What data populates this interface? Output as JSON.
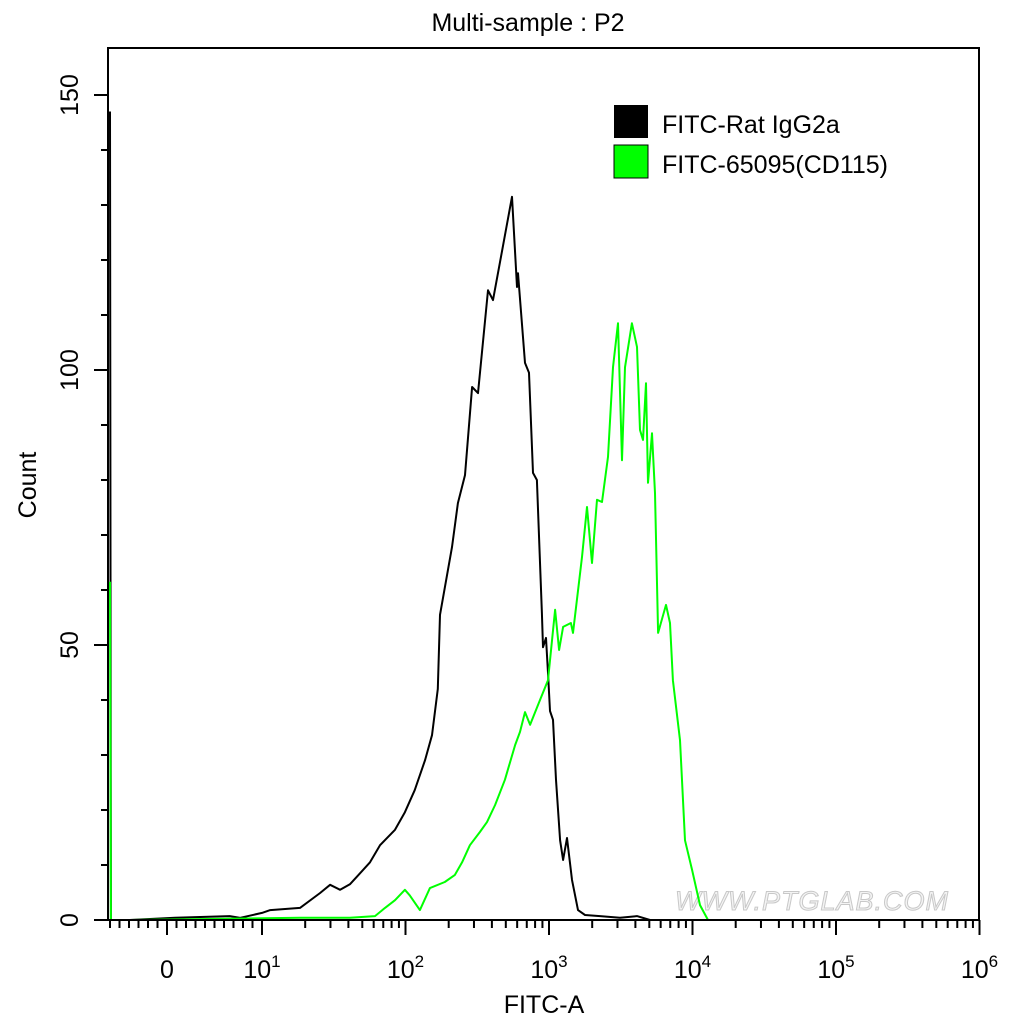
{
  "chart_data": {
    "type": "line",
    "title": "Multi-sample : P2",
    "xlabel": "FITC-A",
    "ylabel": "Count",
    "x_scale": "biexponential",
    "xlim": [
      -6.3,
      1000000
    ],
    "ylim": [
      0,
      158
    ],
    "x_tick_labels": [
      {
        "value": 0,
        "base": "0",
        "exp": ""
      },
      {
        "value": 10,
        "base": "10",
        "exp": "1"
      },
      {
        "value": 100,
        "base": "10",
        "exp": "2"
      },
      {
        "value": 1000,
        "base": "10",
        "exp": "3"
      },
      {
        "value": 10000,
        "base": "10",
        "exp": "4"
      },
      {
        "value": 100000,
        "base": "10",
        "exp": "5"
      },
      {
        "value": 1000000,
        "base": "10",
        "exp": "6"
      }
    ],
    "y_ticks": [
      0,
      50,
      100,
      150
    ],
    "y_tick_labels": [
      "0",
      "50",
      "100",
      "150"
    ],
    "grid": false,
    "legend_position": "top-right",
    "watermark": "WWW.PTGLAB.COM",
    "series": [
      {
        "name": "FITC-Rat IgG2a",
        "color": "#000000",
        "points": [
          [
            -6.0,
            147
          ],
          [
            -5.9,
            0
          ],
          [
            -3.9,
            0
          ],
          [
            0.84,
            0.4
          ],
          [
            6.6,
            0.7
          ],
          [
            7.7,
            0.4
          ],
          [
            10,
            1.3
          ],
          [
            11.4,
            1.8
          ],
          [
            18.4,
            2.2
          ],
          [
            25.4,
            4.9
          ],
          [
            29.8,
            6.4
          ],
          [
            35,
            5.5
          ],
          [
            41,
            6.5
          ],
          [
            48.2,
            8.5
          ],
          [
            56.6,
            10.5
          ],
          [
            66.4,
            13.6
          ],
          [
            84.5,
            16.4
          ],
          [
            99,
            19.6
          ],
          [
            116,
            23.6
          ],
          [
            137,
            29.1
          ],
          [
            153,
            33.6
          ],
          [
            168,
            42
          ],
          [
            174,
            55.5
          ],
          [
            211,
            67.8
          ],
          [
            232,
            75.8
          ],
          [
            260,
            80.9
          ],
          [
            291,
            96.9
          ],
          [
            320,
            95.8
          ],
          [
            376,
            114.5
          ],
          [
            407,
            112.7
          ],
          [
            470,
            121.5
          ],
          [
            552,
            131.5
          ],
          [
            598,
            115.1
          ],
          [
            608,
            117.6
          ],
          [
            680,
            101.3
          ],
          [
            726,
            99.5
          ],
          [
            774,
            81.3
          ],
          [
            824,
            80
          ],
          [
            893,
            55.8
          ],
          [
            908,
            49.6
          ],
          [
            953,
            51.3
          ],
          [
            984,
            44.9
          ],
          [
            1016,
            38
          ],
          [
            1067,
            36.4
          ],
          [
            1119,
            25.5
          ],
          [
            1194,
            14.5
          ],
          [
            1253,
            10.9
          ],
          [
            1335,
            14.9
          ],
          [
            1446,
            7.3
          ],
          [
            1592,
            1.8
          ],
          [
            1782,
            0.9
          ],
          [
            2266,
            0.7
          ],
          [
            3126,
            0.4
          ],
          [
            4105,
            0.7
          ],
          [
            5058,
            0
          ]
        ]
      },
      {
        "name": "FITC-65095(CD115)",
        "color": "#00ff00",
        "points": [
          [
            -6.0,
            61.5
          ],
          [
            -5.9,
            0
          ],
          [
            -3.9,
            0
          ],
          [
            18.4,
            0.4
          ],
          [
            41,
            0.4
          ],
          [
            61.3,
            0.7
          ],
          [
            72,
            2.2
          ],
          [
            84.5,
            3.6
          ],
          [
            99,
            5.5
          ],
          [
            107,
            4.5
          ],
          [
            126,
            1.8
          ],
          [
            148,
            5.8
          ],
          [
            188,
            6.9
          ],
          [
            221,
            8.2
          ],
          [
            248,
            10.5
          ],
          [
            281,
            13.6
          ],
          [
            330,
            16
          ],
          [
            370,
            17.8
          ],
          [
            421,
            20.9
          ],
          [
            493,
            25.5
          ],
          [
            580,
            31.8
          ],
          [
            628,
            34.2
          ],
          [
            680,
            37.8
          ],
          [
            738,
            35.5
          ],
          [
            865,
            40
          ],
          [
            984,
            43.6
          ],
          [
            1102,
            56.4
          ],
          [
            1175,
            49.1
          ],
          [
            1253,
            53.3
          ],
          [
            1422,
            54
          ],
          [
            1469,
            52.2
          ],
          [
            1698,
            66
          ],
          [
            1841,
            75.1
          ],
          [
            1995,
            64.9
          ],
          [
            2159,
            76.4
          ],
          [
            2339,
            76
          ],
          [
            2576,
            84.2
          ],
          [
            2792,
            100.5
          ],
          [
            3025,
            108.5
          ],
          [
            3228,
            83.6
          ],
          [
            3388,
            100.5
          ],
          [
            3784,
            108.5
          ],
          [
            4105,
            104.2
          ],
          [
            4305,
            89.1
          ],
          [
            4519,
            87.3
          ],
          [
            4743,
            97.6
          ],
          [
            4898,
            79.5
          ],
          [
            5224,
            88.5
          ],
          [
            5483,
            77.6
          ],
          [
            5754,
            52.2
          ],
          [
            6538,
            57.3
          ],
          [
            6966,
            54
          ],
          [
            7305,
            43.6
          ],
          [
            8185,
            32.7
          ],
          [
            8872,
            14.5
          ],
          [
            9931,
            9.1
          ],
          [
            11270,
            2.7
          ],
          [
            12820,
            0
          ]
        ]
      }
    ]
  }
}
